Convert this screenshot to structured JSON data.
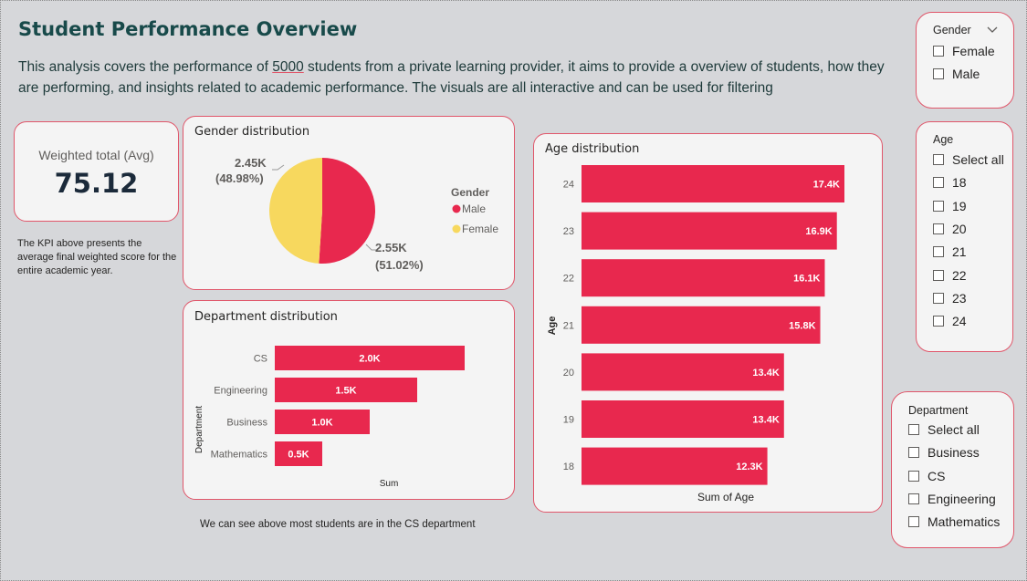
{
  "header": {
    "title": "Student Performance Overview",
    "desc_part1": "This analysis covers the performance of ",
    "desc_highlight": "5000",
    "desc_part2": " students from a private learning provider, it aims to provide a overview of students, how they are performing, and insights related to academic performance. The visuals are all interactive and can be used for filtering"
  },
  "kpi": {
    "label": "Weighted total (Avg)",
    "value": "75.12",
    "note": "The KPI above presents the average final weighted score for the entire academic year."
  },
  "colors": {
    "male": "#e8284e",
    "female": "#f7d85e",
    "accent_border": "#e0566a"
  },
  "gender_chart": {
    "title": "Gender distribution",
    "legend_title": "Gender",
    "legend_items": [
      "Male",
      "Female"
    ],
    "female_label_1": "2.45K",
    "female_label_2": "(48.98%)",
    "male_label_1": "2.55K",
    "male_label_2": "(51.02%)"
  },
  "department_chart": {
    "title": "Department distribution",
    "ylabel": "Department",
    "xlabel": "Sum",
    "footnote": "We can see above most students are in the CS department"
  },
  "age_chart": {
    "title": "Age distribution",
    "ylabel": "Age",
    "xlabel": "Sum of Age"
  },
  "chart_data": [
    {
      "type": "pie",
      "title": "Gender distribution",
      "categories": [
        "Male",
        "Female"
      ],
      "values": [
        2550,
        2450
      ],
      "percent": [
        51.02,
        48.98
      ]
    },
    {
      "type": "bar",
      "orientation": "horizontal",
      "title": "Department distribution",
      "categories": [
        "CS",
        "Engineering",
        "Business",
        "Mathematics"
      ],
      "values": [
        2000,
        1500,
        1000,
        500
      ],
      "labels": [
        "2.0K",
        "1.5K",
        "1.0K",
        "0.5K"
      ],
      "xlabel": "Sum",
      "ylabel": "Department"
    },
    {
      "type": "bar",
      "orientation": "horizontal",
      "title": "Age distribution",
      "categories": [
        "24",
        "23",
        "22",
        "21",
        "20",
        "19",
        "18"
      ],
      "values": [
        17400,
        16900,
        16100,
        15800,
        13400,
        13400,
        12300
      ],
      "labels": [
        "17.4K",
        "16.9K",
        "16.1K",
        "15.8K",
        "13.4K",
        "13.4K",
        "12.3K"
      ],
      "xlabel": "Sum of Age",
      "ylabel": "Age"
    }
  ],
  "slicers": {
    "gender": {
      "title": "Gender",
      "options": [
        "Female",
        "Male"
      ]
    },
    "age": {
      "title": "Age",
      "options": [
        "Select all",
        "18",
        "19",
        "20",
        "21",
        "22",
        "23",
        "24"
      ]
    },
    "department": {
      "title": "Department",
      "options": [
        "Select all",
        "Business",
        "CS",
        "Engineering",
        "Mathematics"
      ]
    }
  }
}
